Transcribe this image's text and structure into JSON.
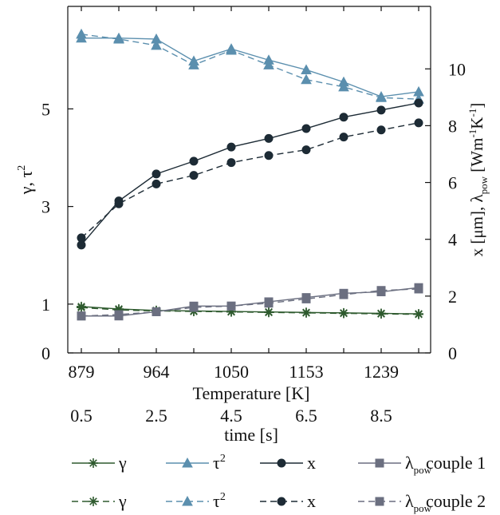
{
  "chart_data": {
    "type": "line",
    "x_index": [
      0,
      1,
      2,
      3,
      4,
      5,
      6,
      7,
      8,
      9
    ],
    "x_axis_primary": {
      "title": "Temperature [K]",
      "tick_labels": [
        "879",
        "964",
        "1050",
        "1153",
        "1239"
      ],
      "tick_index": [
        0,
        2,
        4,
        6,
        8
      ]
    },
    "x_axis_secondary": {
      "title": "time [s]",
      "tick_labels": [
        "0.5",
        "2.5",
        "4.5",
        "6.5",
        "8.5"
      ],
      "tick_index": [
        0,
        2,
        4,
        6,
        8
      ]
    },
    "y_left": {
      "title_main": "γ, τ",
      "title_sup": "2",
      "ticks": [
        0,
        1,
        3,
        5
      ],
      "tick_labels": [
        "0",
        "1",
        "3",
        "5"
      ],
      "range": [
        0,
        7.1
      ]
    },
    "y_right": {
      "title_part1": "x [μm], λ",
      "title_sub": "pow",
      "title_part2": " [Wm",
      "title_sup1": "-1",
      "title_part3": "K",
      "title_sup2": "-1",
      "title_part4": "]",
      "ticks": [
        0,
        2,
        4,
        6,
        8,
        10
      ],
      "tick_labels": [
        "0",
        "2",
        "4",
        "6",
        "8",
        "10"
      ],
      "range": [
        0,
        12.2
      ]
    },
    "colors": {
      "gamma": "#2e5a2e",
      "tau2": "#5b8fae",
      "x": "#1d2b35",
      "lambda": "#6b6f80"
    },
    "series": [
      {
        "key": "gamma",
        "couple": 1,
        "axis": "left",
        "dash": false,
        "marker": "star",
        "values": [
          0.95,
          0.9,
          0.87,
          0.86,
          0.85,
          0.84,
          0.83,
          0.82,
          0.81,
          0.8
        ]
      },
      {
        "key": "gamma",
        "couple": 2,
        "axis": "left",
        "dash": true,
        "marker": "star",
        "values": [
          0.93,
          0.88,
          0.86,
          0.85,
          0.84,
          0.83,
          0.82,
          0.81,
          0.8,
          0.79
        ]
      },
      {
        "key": "tau2",
        "couple": 1,
        "axis": "left",
        "dash": false,
        "marker": "triangle",
        "values": [
          6.45,
          6.45,
          6.43,
          5.98,
          6.23,
          6.0,
          5.8,
          5.55,
          5.25,
          5.35
        ]
      },
      {
        "key": "tau2",
        "couple": 2,
        "axis": "left",
        "dash": true,
        "marker": "triangle",
        "values": [
          6.53,
          6.43,
          6.3,
          5.9,
          6.2,
          5.9,
          5.6,
          5.45,
          5.23,
          5.2
        ]
      },
      {
        "key": "x",
        "couple": 1,
        "axis": "right",
        "dash": false,
        "marker": "circle",
        "values": [
          3.8,
          5.35,
          6.3,
          6.75,
          7.25,
          7.55,
          7.9,
          8.3,
          8.55,
          8.8
        ]
      },
      {
        "key": "x",
        "couple": 2,
        "axis": "right",
        "dash": true,
        "marker": "circle",
        "values": [
          4.05,
          5.25,
          5.95,
          6.25,
          6.7,
          6.95,
          7.15,
          7.6,
          7.85,
          8.1
        ]
      },
      {
        "key": "lambda",
        "couple": 1,
        "axis": "right",
        "dash": false,
        "marker": "square",
        "values": [
          1.3,
          1.3,
          1.45,
          1.65,
          1.65,
          1.8,
          1.95,
          2.1,
          2.15,
          2.3
        ]
      },
      {
        "key": "lambda",
        "couple": 2,
        "axis": "right",
        "dash": true,
        "marker": "square",
        "values": [
          1.3,
          1.35,
          1.45,
          1.6,
          1.65,
          1.75,
          1.9,
          2.05,
          2.2,
          2.25
        ]
      }
    ],
    "legend": {
      "placement": "bottom",
      "labels": {
        "gamma": "γ",
        "tau_main": "τ",
        "tau_sup": "2",
        "x": "x",
        "lambda_main": "λ",
        "lambda_sub": "pow"
      },
      "row_labels": [
        "couple 1",
        "couple 2"
      ]
    },
    "grid": false
  }
}
